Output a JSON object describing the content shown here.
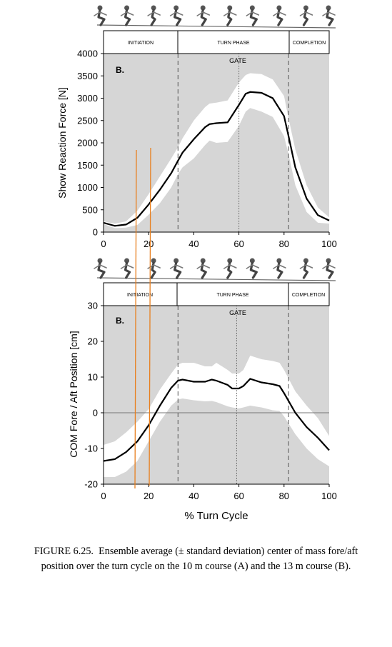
{
  "charts": [
    {
      "panel_label": "B.",
      "ylabel": "Show Reaction Force [N]",
      "xlabel": "",
      "phases": [
        "INITIATION",
        "TURN PHASE",
        "COMPLETION"
      ],
      "gate_label": "GATE"
    },
    {
      "panel_label": "B.",
      "ylabel": "COM Fore / Aft Position [cm]",
      "xlabel": "% Turn Cycle",
      "phases": [
        "INITIATION",
        "TURN PHASE",
        "COMPLETION"
      ],
      "gate_label": "GATE"
    }
  ],
  "chart_data": [
    {
      "type": "area",
      "title": "",
      "xlim": [
        0,
        100
      ],
      "ylim": [
        0,
        4000
      ],
      "xticks": [
        0,
        20,
        40,
        60,
        80,
        100
      ],
      "yticks": [
        0,
        500,
        1000,
        1500,
        2000,
        2500,
        3000,
        3500,
        4000
      ],
      "grid": false,
      "phase_boundaries": [
        33,
        82
      ],
      "gate_x": 60,
      "x": [
        0,
        5,
        10,
        15,
        20,
        25,
        30,
        33,
        35,
        40,
        45,
        47,
        50,
        55,
        60,
        63,
        65,
        70,
        75,
        80,
        82,
        85,
        90,
        95,
        100
      ],
      "series": [
        {
          "name": "",
          "values": [
            210,
            140,
            170,
            320,
            620,
            950,
            1320,
            1600,
            1780,
            2080,
            2350,
            2420,
            2440,
            2460,
            2850,
            3100,
            3140,
            3120,
            3000,
            2600,
            2150,
            1450,
            750,
            380,
            260
          ]
        },
        {
          "name": "",
          "values": [
            240,
            190,
            240,
            480,
            850,
            1250,
            1650,
            1900,
            2100,
            2500,
            2800,
            2880,
            2900,
            2950,
            3350,
            3520,
            3560,
            3540,
            3420,
            3050,
            2550,
            1850,
            1050,
            550,
            330
          ]
        },
        {
          "name": "",
          "values": [
            180,
            90,
            100,
            160,
            390,
            650,
            1000,
            1300,
            1450,
            1650,
            1950,
            2050,
            2000,
            2020,
            2380,
            2700,
            2780,
            2700,
            2580,
            2150,
            1750,
            1050,
            450,
            210,
            190
          ]
        }
      ]
    },
    {
      "type": "area",
      "title": "",
      "xlim": [
        0,
        100
      ],
      "ylim": [
        -20,
        30
      ],
      "xticks": [
        0,
        20,
        40,
        60,
        80,
        100
      ],
      "yticks": [
        -20,
        -10,
        0,
        10,
        20,
        30
      ],
      "grid": false,
      "phase_boundaries": [
        33,
        82
      ],
      "gate_x": 59,
      "x": [
        0,
        5,
        10,
        15,
        20,
        25,
        30,
        33,
        35,
        40,
        45,
        48,
        50,
        55,
        57,
        60,
        62,
        65,
        70,
        75,
        78,
        80,
        85,
        90,
        95,
        100
      ],
      "series": [
        {
          "name": "",
          "values": [
            -13.5,
            -13,
            -11,
            -8,
            -3.5,
            2,
            7,
            9,
            9.3,
            8.7,
            8.7,
            9.3,
            9,
            7.8,
            6.8,
            6.8,
            7.5,
            9.5,
            8.5,
            8,
            7.5,
            5.5,
            0,
            -4,
            -7,
            -10.5
          ]
        },
        {
          "name": "",
          "values": [
            -9,
            -8,
            -5.5,
            -2.5,
            1,
            6.5,
            11,
            13.5,
            14,
            14,
            13,
            13,
            14,
            12,
            11,
            11,
            12,
            16,
            15,
            14.5,
            14,
            12,
            6,
            2,
            -1.5,
            -6.5
          ]
        },
        {
          "name": "",
          "values": [
            -18,
            -18,
            -16.5,
            -13.5,
            -8,
            -2.5,
            2,
            3.7,
            4,
            3.5,
            3.2,
            3.3,
            3,
            1.8,
            1.5,
            1.2,
            1.5,
            2,
            1.5,
            0.7,
            0.5,
            -1,
            -6,
            -10,
            -13,
            -15
          ]
        }
      ]
    }
  ]
}
